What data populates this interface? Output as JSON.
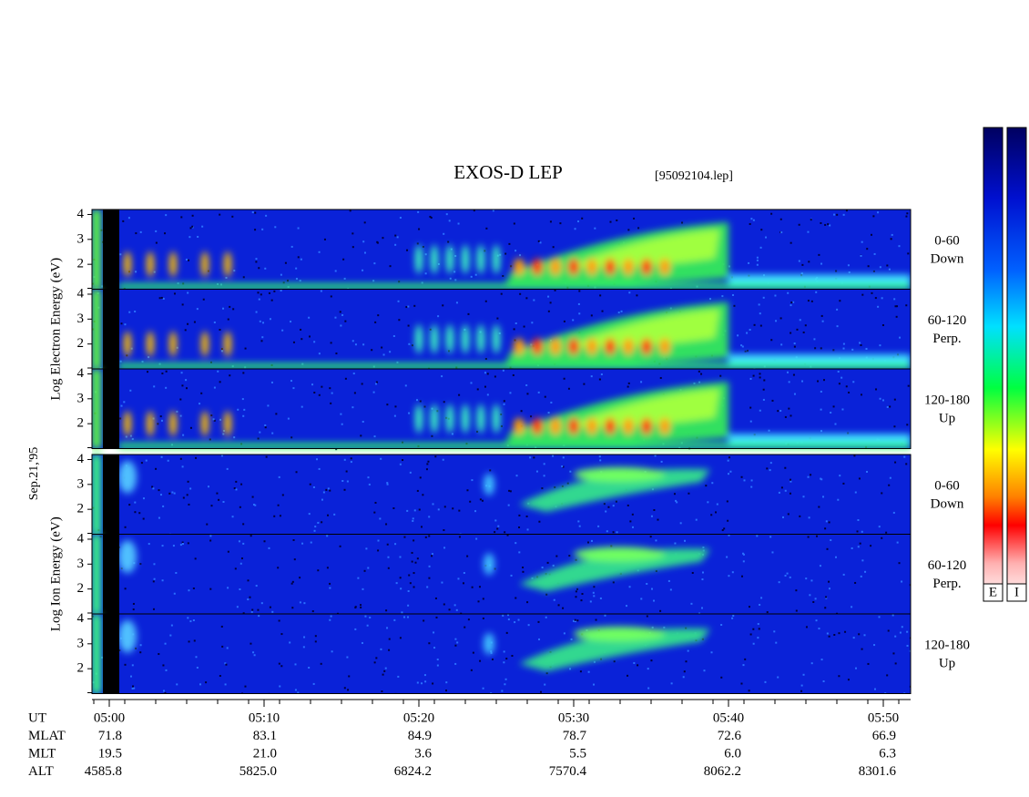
{
  "chart_data": {
    "type": "spectrogram",
    "title": "EXOS-D LEP",
    "file_label": "[95092104.lep]",
    "date_label": "Sep.21,'95",
    "ylim": [
      1,
      4.2
    ],
    "yticks": [
      2,
      3,
      4
    ],
    "xticks": [
      "05:00",
      "05:10",
      "05:20",
      "05:30",
      "05:40",
      "05:50"
    ],
    "panels": [
      {
        "ylabel": "Log  Electron  Energy (eV)",
        "kind": "electron",
        "rows": [
          {
            "angle": "0-60",
            "dir": "Down"
          },
          {
            "angle": "60-120",
            "dir": "Perp."
          },
          {
            "angle": "120-180",
            "dir": "Up"
          }
        ]
      },
      {
        "ylabel": "Log  Ion  Energy (eV)",
        "kind": "ion",
        "rows": [
          {
            "angle": "0-60",
            "dir": "Down"
          },
          {
            "angle": "60-120",
            "dir": "Perp."
          },
          {
            "angle": "120-180",
            "dir": "Up"
          }
        ]
      }
    ],
    "ephemeris": [
      {
        "name": "UT",
        "values": []
      },
      {
        "name": "MLAT",
        "values": [
          "71.8",
          "83.1",
          "84.9",
          "78.7",
          "72.6",
          "66.9"
        ]
      },
      {
        "name": "MLT",
        "values": [
          "19.5",
          "21.0",
          "3.6",
          "5.5",
          "6.0",
          "6.3"
        ]
      },
      {
        "name": "ALT",
        "values": [
          "4585.8",
          "5825.0",
          "6824.2",
          "7570.4",
          "8062.2",
          "8301.6"
        ]
      }
    ],
    "colorbar_labels": [
      "E",
      "I"
    ]
  }
}
